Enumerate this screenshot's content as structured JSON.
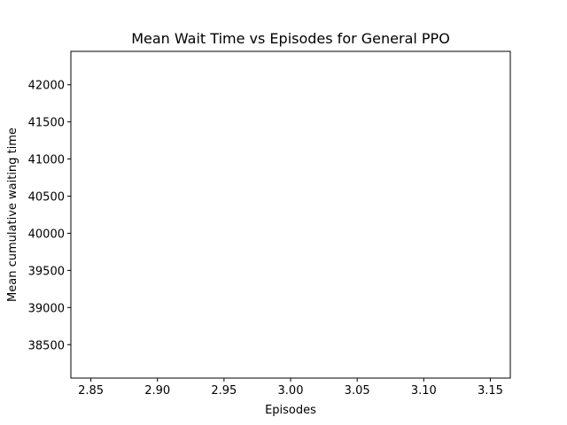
{
  "chart_data": {
    "type": "line",
    "title": "Mean Wait Time vs Episodes for General PPO",
    "xlabel": "Episodes",
    "ylabel": "Mean cumulative waiting time",
    "xlim": [
      2.835,
      3.165
    ],
    "ylim": [
      38050,
      42450
    ],
    "xticks": [
      2.85,
      2.9,
      2.95,
      3.0,
      3.05,
      3.1,
      3.15
    ],
    "xtick_labels": [
      "2.85",
      "2.90",
      "2.95",
      "3.00",
      "3.05",
      "3.10",
      "3.15"
    ],
    "yticks": [
      38500,
      39000,
      39500,
      40000,
      40500,
      41000,
      41500,
      42000
    ],
    "ytick_labels": [
      "38500",
      "39000",
      "39500",
      "40000",
      "40500",
      "41000",
      "41500",
      "42000"
    ],
    "series": [],
    "grid": false,
    "legend": "none"
  }
}
